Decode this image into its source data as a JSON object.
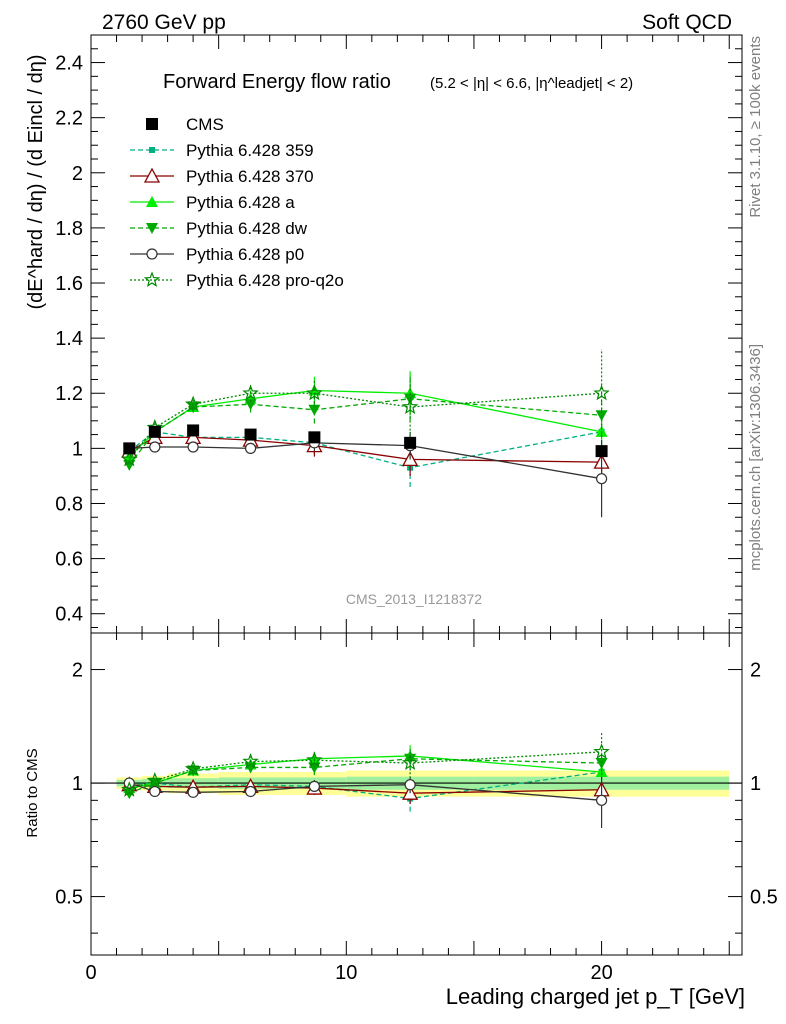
{
  "header": {
    "left": "2760 GeV pp",
    "right": "Soft QCD"
  },
  "side_labels": {
    "rivet": "Rivet 3.1.10, ≥ 100k events",
    "mcplots": "mcplots.cern.ch [arXiv:1306.3436]"
  },
  "chart_data": [
    {
      "type": "scatter",
      "title": "Forward Energy flow ratio",
      "title_cut": "(5.2 < |η| < 6.6, |η^leadjet| < 2)",
      "watermark": "CMS_2013_I1218372",
      "xlabel": "Leading charged jet p_T [GeV]",
      "ylabel": "(dE^hard / dη) / (d Eincl / dη)",
      "xlim": [
        0,
        25.5
      ],
      "ylim": [
        0.33,
        2.5
      ],
      "xticks": [
        0,
        10,
        20
      ],
      "yticks": [
        0.4,
        0.6,
        0.8,
        1,
        1.2,
        1.4,
        1.6,
        1.8,
        2,
        2.2,
        2.4
      ],
      "yticklabels": [
        "0.4",
        "0.6",
        "0.8",
        "1",
        "1.2",
        "1.4",
        "1.6",
        "1.8",
        "2",
        "2.2",
        "2.4"
      ],
      "legend_placement": "top-left",
      "x": [
        1.5,
        2.5,
        4,
        6.25,
        8.75,
        12.5,
        20
      ],
      "series": [
        {
          "name": "CMS",
          "color": "#000000",
          "marker": "square",
          "dash": "none",
          "values": [
            1.0,
            1.06,
            1.065,
            1.05,
            1.04,
            1.02,
            0.99
          ],
          "err": [
            0,
            0,
            0,
            0,
            0,
            0,
            0
          ]
        },
        {
          "name": "Pythia 6.428 359",
          "color": "#00b080",
          "marker": "small-square",
          "dash": "dashed",
          "values": [
            0.99,
            1.06,
            1.04,
            1.04,
            1.02,
            0.93,
            1.06
          ],
          "err": [
            0.01,
            0.02,
            0.02,
            0.03,
            0.04,
            0.07,
            0.05
          ]
        },
        {
          "name": "Pythia 6.428 370",
          "color": "#8b0000",
          "marker": "open-triangle",
          "dash": "none",
          "values": [
            0.99,
            1.04,
            1.04,
            1.03,
            1.01,
            0.96,
            0.95
          ],
          "err": [
            0.01,
            0.02,
            0.02,
            0.03,
            0.04,
            0.06,
            0.05
          ]
        },
        {
          "name": "Pythia 6.428 a",
          "color": "#00ee00",
          "marker": "filled-triangle",
          "dash": "none",
          "values": [
            0.97,
            1.06,
            1.15,
            1.18,
            1.21,
            1.2,
            1.06
          ],
          "err": [
            0.01,
            0.02,
            0.02,
            0.03,
            0.05,
            0.08,
            0.06
          ]
        },
        {
          "name": "Pythia 6.428 dw",
          "color": "#00aa00",
          "marker": "inverted-triangle",
          "dash": "dashed",
          "values": [
            0.94,
            1.06,
            1.15,
            1.16,
            1.14,
            1.18,
            1.12
          ],
          "err": [
            0.01,
            0.02,
            0.02,
            0.03,
            0.05,
            0.08,
            0.08
          ]
        },
        {
          "name": "Pythia 6.428 p0",
          "color": "#333333",
          "marker": "open-circle",
          "dash": "none",
          "values": [
            1.0,
            1.005,
            1.005,
            1.0,
            1.02,
            1.01,
            0.89
          ],
          "err": [
            0.01,
            0.01,
            0.01,
            0.02,
            0.03,
            0.05,
            0.14
          ]
        },
        {
          "name": "Pythia 6.428 pro-q2o",
          "color": "#008800",
          "marker": "star",
          "dash": "dotted",
          "values": [
            0.96,
            1.075,
            1.16,
            1.2,
            1.2,
            1.15,
            1.2
          ],
          "err": [
            0.01,
            0.02,
            0.02,
            0.03,
            0.05,
            0.1,
            0.16
          ]
        }
      ]
    },
    {
      "type": "scatter",
      "title": "",
      "xlabel": "Leading charged jet p_T [GeV]",
      "ylabel": "Ratio to CMS",
      "scale": "log",
      "xlim": [
        0,
        25.5
      ],
      "ylim": [
        0.35,
        2.5
      ],
      "xticks": [
        0,
        10,
        20
      ],
      "yticks": [
        0.5,
        1,
        2
      ],
      "yticklabels": [
        "0.5",
        "1",
        "2"
      ],
      "bands": {
        "x_edges": [
          1,
          2,
          3,
          5,
          7.5,
          10,
          15,
          25
        ],
        "inner_halfwidth": [
          0.02,
          0.025,
          0.03,
          0.035,
          0.035,
          0.04,
          0.04
        ],
        "outer_halfwidth": [
          0.035,
          0.045,
          0.06,
          0.07,
          0.07,
          0.08,
          0.08
        ],
        "inner_color": "#a0f0a0",
        "outer_color": "#ffff99"
      },
      "x": [
        1.5,
        2.5,
        4,
        6.25,
        8.75,
        12.5,
        20
      ],
      "series": [
        {
          "name": "Pythia 6.428 359",
          "values": [
            0.99,
            1.0,
            0.975,
            0.99,
            0.98,
            0.91,
            1.07
          ],
          "err": [
            0.01,
            0.02,
            0.02,
            0.03,
            0.04,
            0.07,
            0.05
          ]
        },
        {
          "name": "Pythia 6.428 370",
          "values": [
            0.99,
            0.98,
            0.975,
            0.98,
            0.97,
            0.94,
            0.96
          ],
          "err": [
            0.01,
            0.02,
            0.02,
            0.03,
            0.04,
            0.06,
            0.05
          ]
        },
        {
          "name": "Pythia 6.428 a",
          "values": [
            0.97,
            1.0,
            1.08,
            1.12,
            1.16,
            1.18,
            1.07
          ],
          "err": [
            0.01,
            0.02,
            0.02,
            0.03,
            0.05,
            0.08,
            0.06
          ]
        },
        {
          "name": "Pythia 6.428 dw",
          "values": [
            0.94,
            1.0,
            1.08,
            1.1,
            1.1,
            1.16,
            1.13
          ],
          "err": [
            0.01,
            0.02,
            0.02,
            0.03,
            0.05,
            0.08,
            0.08
          ]
        },
        {
          "name": "Pythia 6.428 p0",
          "values": [
            1.0,
            0.95,
            0.945,
            0.95,
            0.98,
            0.99,
            0.9
          ],
          "err": [
            0.01,
            0.01,
            0.01,
            0.02,
            0.03,
            0.05,
            0.14
          ]
        },
        {
          "name": "Pythia 6.428 pro-q2o",
          "values": [
            0.96,
            1.015,
            1.09,
            1.14,
            1.15,
            1.13,
            1.21
          ],
          "err": [
            0.01,
            0.02,
            0.02,
            0.03,
            0.05,
            0.1,
            0.16
          ]
        }
      ]
    }
  ]
}
